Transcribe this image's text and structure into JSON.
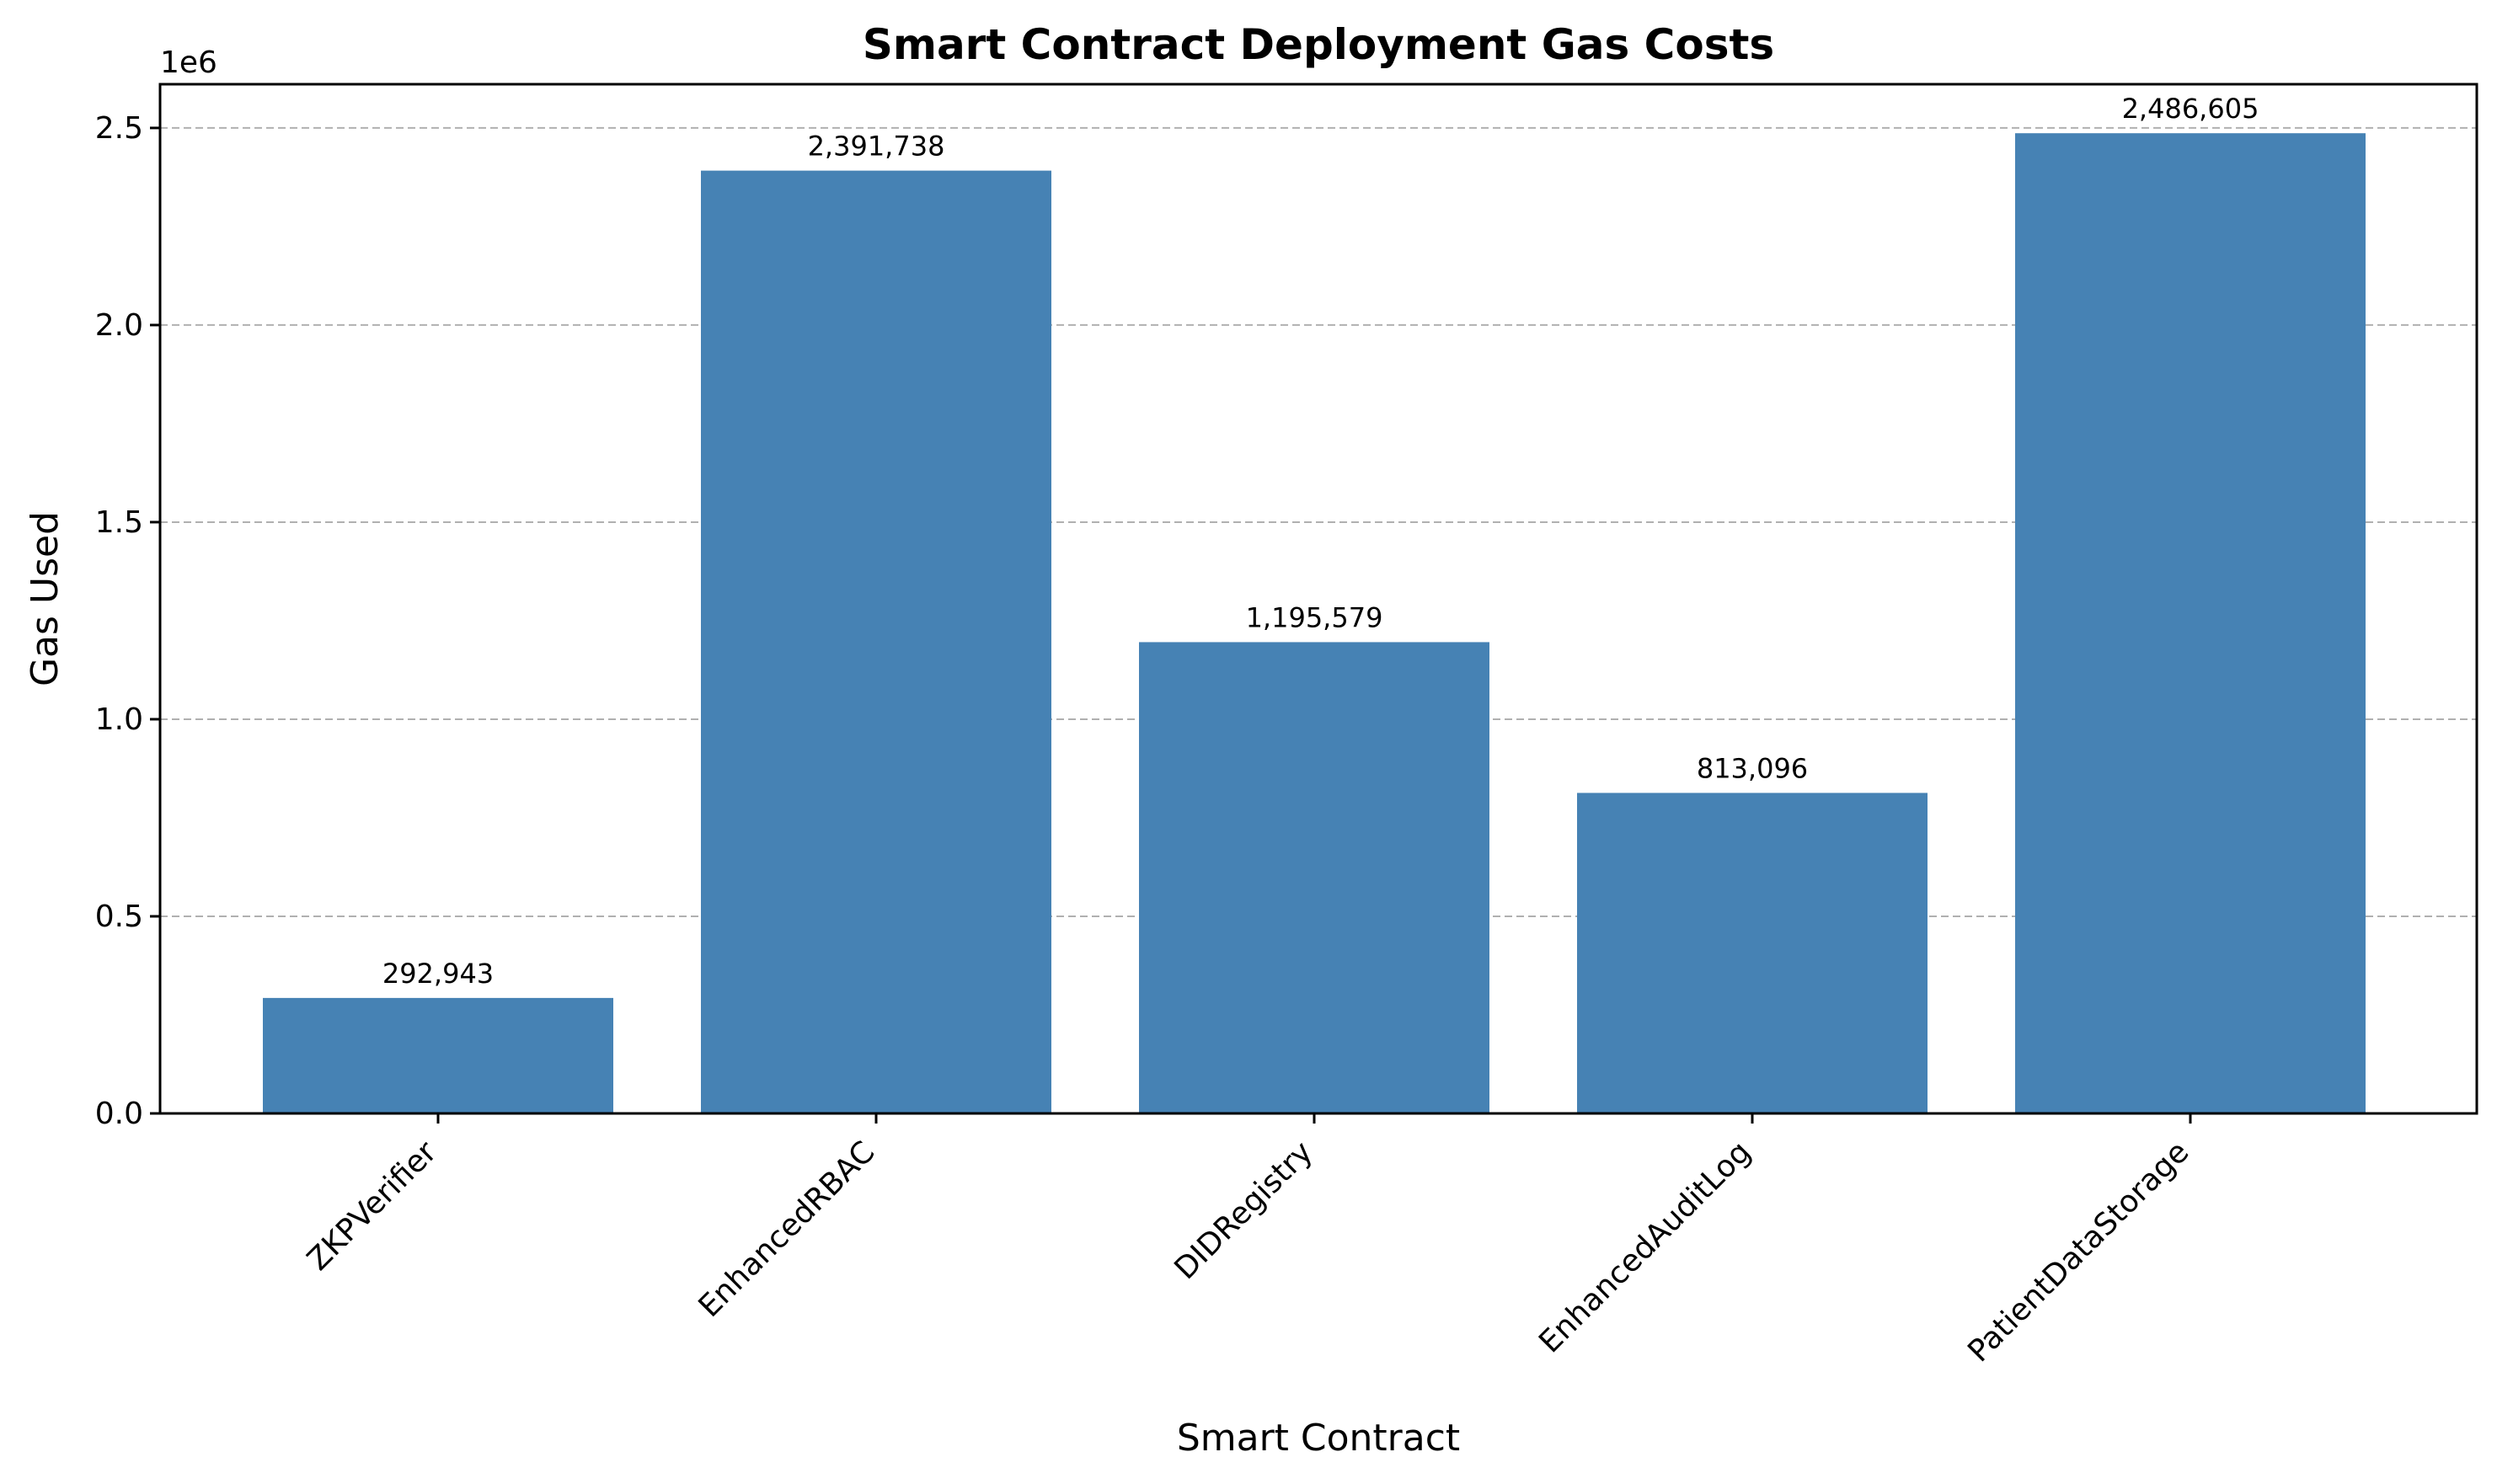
{
  "chart_data": {
    "type": "bar",
    "title": "Smart Contract Deployment Gas Costs",
    "xlabel": "Smart Contract",
    "ylabel": "Gas Used",
    "y_scale_label": "1e6",
    "categories": [
      "ZKPVerifier",
      "EnhancedRBAC",
      "DIDRegistry",
      "EnhancedAuditLog",
      "PatientDataStorage"
    ],
    "values": [
      292943,
      2391738,
      1195579,
      813096,
      2486605
    ],
    "value_labels": [
      "292,943",
      "2,391,738",
      "1,195,579",
      "813,096",
      "2,486,605"
    ],
    "yticks": [
      0,
      500000,
      1000000,
      1500000,
      2000000,
      2500000
    ],
    "ytick_labels": [
      "0.0",
      "0.5",
      "1.0",
      "1.5",
      "2.0",
      "2.5"
    ],
    "ylim": [
      0,
      2610935
    ],
    "bar_color": "#4682b4",
    "grid": "y-dashed",
    "legend": "none"
  }
}
